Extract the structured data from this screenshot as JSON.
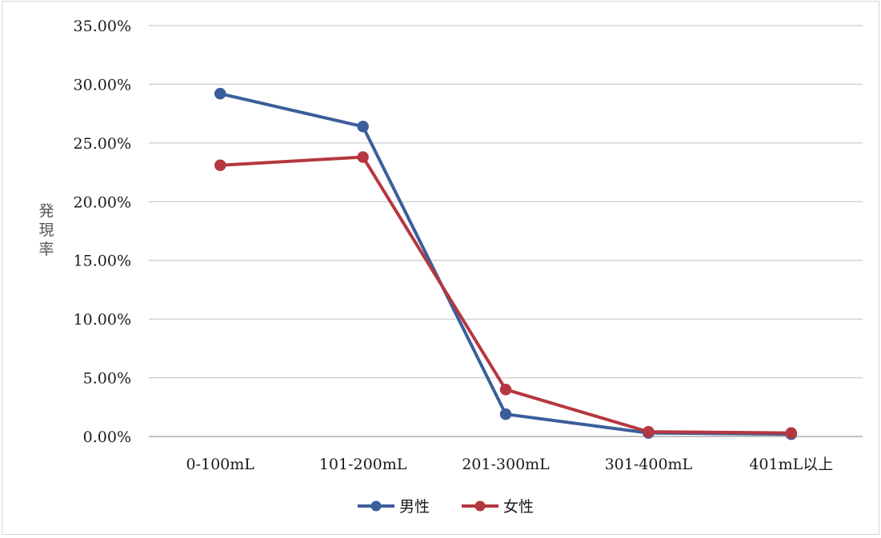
{
  "chart_data": {
    "type": "line",
    "title": "",
    "xlabel": "",
    "ylabel": "発現率",
    "categories": [
      "0-100mL",
      "101-200mL",
      "201-300mL",
      "301-400mL",
      "401mL以上"
    ],
    "ylim": [
      0,
      0.35
    ],
    "yticks": [
      0,
      0.05,
      0.1,
      0.15,
      0.2,
      0.25,
      0.3,
      0.35
    ],
    "ytick_labels": [
      "0.00%",
      "5.00%",
      "10.00%",
      "15.00%",
      "20.00%",
      "25.00%",
      "30.00%",
      "35.00%"
    ],
    "grid": true,
    "legend_position": "bottom",
    "series": [
      {
        "name": "男性",
        "color": "#3b5e9b",
        "values": [
          0.292,
          0.264,
          0.019,
          0.003,
          0.002
        ]
      },
      {
        "name": "女性",
        "color": "#b5373f",
        "values": [
          0.231,
          0.238,
          0.04,
          0.004,
          0.003
        ]
      }
    ]
  }
}
